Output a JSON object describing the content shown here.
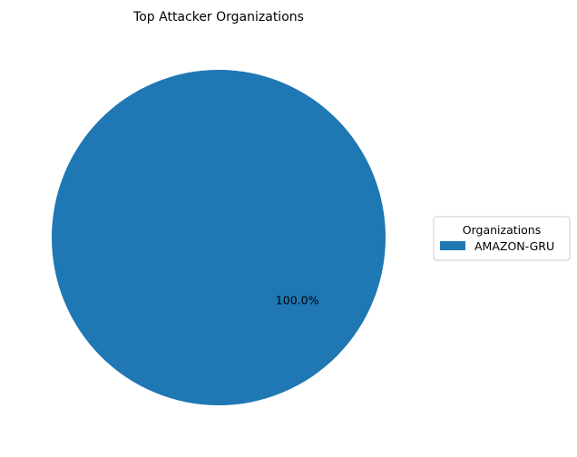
{
  "chart_data": {
    "type": "pie",
    "title": "Top Attacker Organizations",
    "slices": [
      {
        "label": "AMAZON-GRU",
        "value": 100.0,
        "pct_label": "100.0%",
        "color": "#1f77b4"
      }
    ],
    "legend": {
      "title": "Organizations",
      "placement": "right"
    }
  }
}
